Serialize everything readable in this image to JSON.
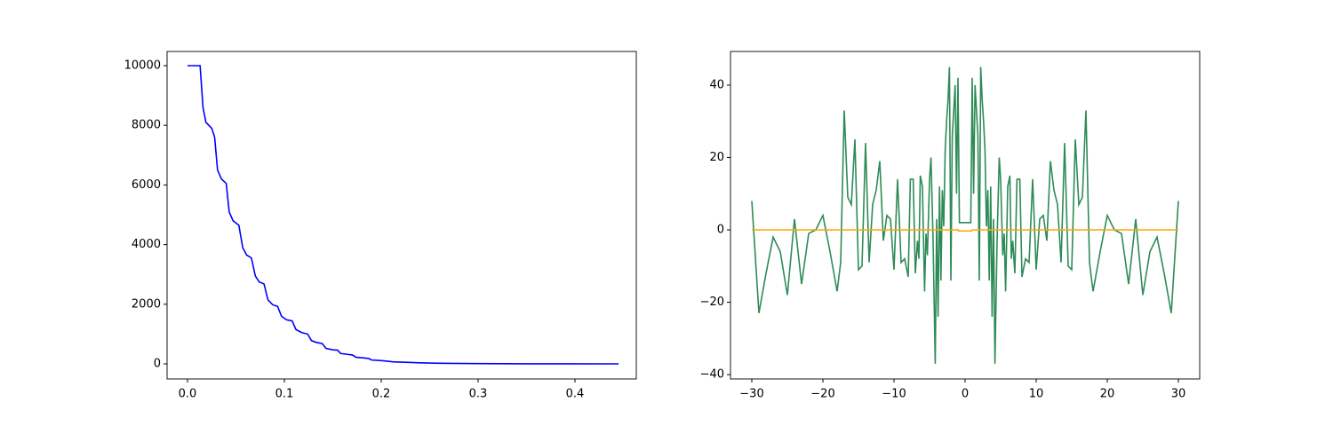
{
  "chart_data": [
    {
      "type": "line",
      "xlim": [
        -0.0211,
        0.4633
      ],
      "ylim": [
        -506,
        10476
      ],
      "xticks": [
        {
          "value": 0,
          "label": "0.0"
        },
        0.1,
        0.2,
        0.3,
        0.4
      ],
      "yticks": [
        0,
        2000,
        4000,
        6000,
        8000,
        10000
      ],
      "series": [
        {
          "color": "#0000ff",
          "x": [
            0,
            0.013,
            0.016,
            0.019,
            0.025,
            0.028,
            0.031,
            0.035,
            0.04,
            0.043,
            0.047,
            0.053,
            0.057,
            0.061,
            0.066,
            0.07,
            0.074,
            0.079,
            0.083,
            0.088,
            0.093,
            0.097,
            0.102,
            0.108,
            0.112,
            0.118,
            0.124,
            0.128,
            0.133,
            0.139,
            0.143,
            0.15,
            0.155,
            0.158,
            0.165,
            0.17,
            0.174,
            0.182,
            0.187,
            0.19,
            0.2,
            0.206,
            0.212,
            0.225,
            0.24,
            0.26,
            0.3,
            0.35,
            0.445
          ],
          "values": [
            10000,
            10000,
            8600,
            8100,
            7900,
            7600,
            6500,
            6200,
            6050,
            5100,
            4800,
            4650,
            3900,
            3650,
            3550,
            2950,
            2750,
            2680,
            2150,
            1980,
            1930,
            1600,
            1480,
            1440,
            1150,
            1050,
            1000,
            780,
            720,
            680,
            520,
            470,
            460,
            350,
            320,
            300,
            220,
            200,
            180,
            130,
            110,
            90,
            70,
            55,
            35,
            20,
            8,
            3,
            0
          ]
        }
      ]
    },
    {
      "type": "line",
      "xlim": [
        -33,
        33
      ],
      "ylim": [
        -41.2,
        49.3
      ],
      "xticks": [
        {
          "value": -30,
          "label": "−30"
        },
        {
          "value": -20,
          "label": "−20"
        },
        {
          "value": -10,
          "label": "−10"
        },
        0,
        10,
        20,
        30
      ],
      "yticks": [
        {
          "value": -40,
          "label": "−40"
        },
        {
          "value": -20,
          "label": "−20"
        },
        0,
        20,
        40
      ],
      "series": [
        {
          "color": "#2e8b57",
          "x": [
            -30,
            -29,
            -28,
            -27,
            -26,
            -25,
            -24,
            -23,
            -22,
            -21,
            -20,
            -19,
            -18,
            -17.5,
            -17,
            -16.5,
            -16,
            -15.5,
            -15,
            -14.5,
            -14,
            -13.5,
            -13,
            -12.5,
            -12,
            -11.5,
            -11,
            -10.5,
            -10,
            -9.5,
            -9,
            -8.5,
            -8,
            -7.7,
            -7.3,
            -7,
            -6.7,
            -6.5,
            -6.3,
            -6,
            -5.7,
            -5.5,
            -5.3,
            -5,
            -4.8,
            -4.5,
            -4.2,
            -4,
            -3.8,
            -3.6,
            -3.4,
            -3.2,
            -3,
            -2.8,
            -2.6,
            -2.4,
            -2.2,
            -2,
            -1.8,
            -1.6,
            -1.4,
            -1.2,
            -1,
            -0.8,
            -0.6,
            -0.4,
            -0.2,
            0,
            0.2,
            0.4,
            0.6,
            0.8,
            1,
            1.2,
            1.4,
            1.6,
            1.8,
            2,
            2.2,
            2.4,
            2.6,
            2.8,
            3,
            3.2,
            3.4,
            3.6,
            3.8,
            4,
            4.2,
            4.5,
            4.8,
            5,
            5.3,
            5.5,
            5.7,
            6,
            6.3,
            6.5,
            6.7,
            7,
            7.3,
            7.7,
            8,
            8.5,
            9,
            9.5,
            10,
            10.5,
            11,
            11.5,
            12,
            12.5,
            13,
            13.5,
            14,
            14.5,
            15,
            15.5,
            16,
            16.5,
            17,
            17.5,
            18,
            19,
            20,
            21,
            22,
            23,
            24,
            25,
            26,
            27,
            28,
            29,
            30
          ],
          "values": [
            8,
            -23,
            -12,
            -2,
            -6,
            -18,
            3,
            -15,
            -1,
            0,
            4,
            -6,
            -17,
            -9,
            33,
            9,
            7,
            25,
            -11,
            -10,
            24,
            -9,
            7,
            11,
            19,
            -3,
            4,
            3,
            -11,
            14,
            -9,
            -8,
            -13,
            14,
            14,
            -12,
            -3,
            -8,
            15,
            12,
            -17,
            -1,
            -7,
            14,
            20,
            -3,
            -37,
            3,
            -24,
            12,
            -14,
            11,
            1,
            22,
            30,
            36,
            45,
            -14,
            26,
            33,
            40,
            10,
            42,
            2,
            2,
            2,
            2,
            2,
            2,
            2,
            2,
            2,
            42,
            10,
            40,
            33,
            26,
            -14,
            45,
            36,
            30,
            22,
            1,
            11,
            -14,
            12,
            -24,
            3,
            -37,
            -3,
            20,
            14,
            -7,
            -1,
            -17,
            12,
            15,
            -8,
            -3,
            -12,
            14,
            14,
            -13,
            -8,
            -9,
            14,
            -11,
            3,
            4,
            -3,
            19,
            11,
            7,
            -9,
            24,
            -10,
            -11,
            25,
            7,
            9,
            33,
            -9,
            -17,
            -6,
            4,
            0,
            -1,
            -15,
            3,
            -18,
            -6,
            -2,
            -12,
            -23,
            8
          ]
        },
        {
          "color": "#ffa500",
          "x": [
            -30,
            -1,
            -0.9,
            0.9,
            1,
            30
          ],
          "values": [
            0,
            0,
            -0.3,
            -0.3,
            0,
            0
          ]
        }
      ]
    }
  ]
}
